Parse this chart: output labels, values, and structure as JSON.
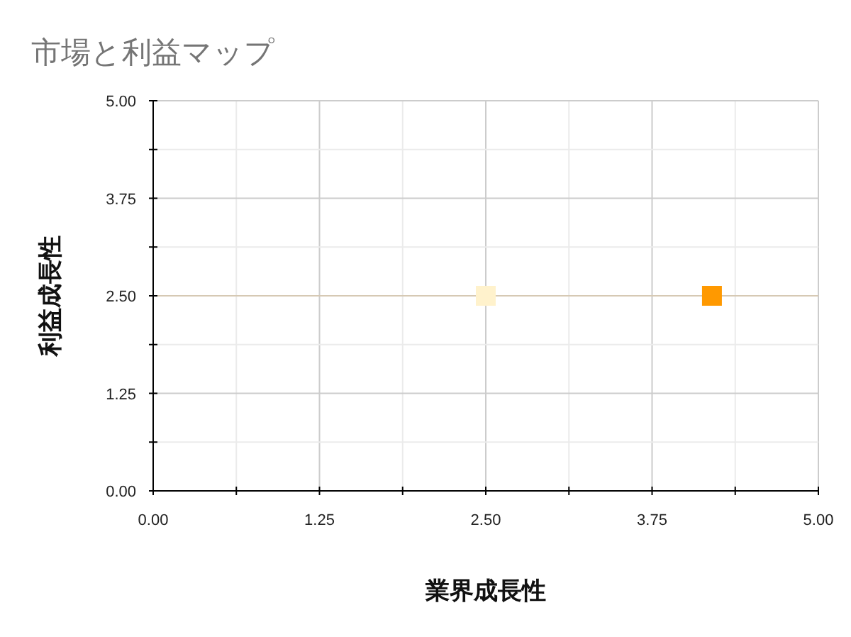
{
  "chart_data": {
    "type": "scatter",
    "title": "市場と利益マップ",
    "xlabel": "業界成長性",
    "ylabel": "利益成長性",
    "x": [
      2.5,
      4.2
    ],
    "values": [
      2.5,
      2.5
    ],
    "colors": [
      "#fff2cc",
      "#ff9900"
    ],
    "marker": "square",
    "xlim": [
      0,
      5
    ],
    "ylim": [
      0,
      5
    ],
    "xticks": [
      {
        "value": 0,
        "label": "0.00"
      },
      {
        "value": 0.625,
        "label": null
      },
      {
        "value": 1.25,
        "label": "1.25"
      },
      {
        "value": 1.875,
        "label": null
      },
      {
        "value": 2.5,
        "label": "2.50"
      },
      {
        "value": 3.125,
        "label": null
      },
      {
        "value": 3.75,
        "label": "3.75"
      },
      {
        "value": 4.375,
        "label": null
      },
      {
        "value": 5,
        "label": "5.00"
      }
    ],
    "yticks": [
      {
        "value": 0,
        "label": "0.00"
      },
      {
        "value": 0.625,
        "label": null
      },
      {
        "value": 1.25,
        "label": "1.25"
      },
      {
        "value": 1.875,
        "label": null
      },
      {
        "value": 2.5,
        "label": "2.50"
      },
      {
        "value": 3.125,
        "label": null
      },
      {
        "value": 3.75,
        "label": "3.75"
      },
      {
        "value": 4.375,
        "label": null
      },
      {
        "value": 5,
        "label": "5.00"
      }
    ],
    "ref_lines": [
      {
        "axis": "y",
        "value": 2.5,
        "color": "#d6c9b4"
      }
    ],
    "grid": true
  }
}
